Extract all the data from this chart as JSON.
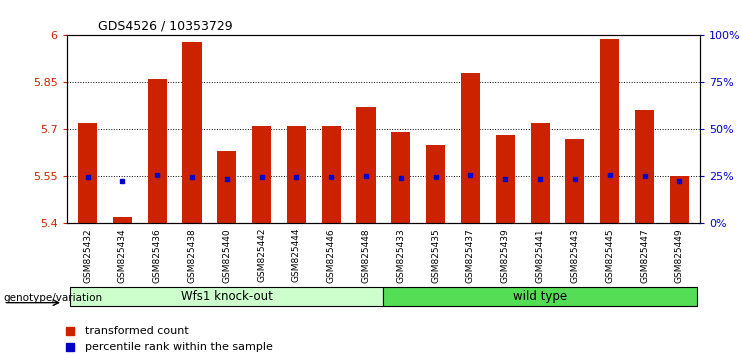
{
  "title": "GDS4526 / 10353729",
  "categories": [
    "GSM825432",
    "GSM825434",
    "GSM825436",
    "GSM825438",
    "GSM825440",
    "GSM825442",
    "GSM825444",
    "GSM825446",
    "GSM825448",
    "GSM825433",
    "GSM825435",
    "GSM825437",
    "GSM825439",
    "GSM825441",
    "GSM825443",
    "GSM825445",
    "GSM825447",
    "GSM825449"
  ],
  "bar_values": [
    5.72,
    5.42,
    5.86,
    5.98,
    5.63,
    5.71,
    5.71,
    5.71,
    5.77,
    5.69,
    5.65,
    5.88,
    5.68,
    5.72,
    5.67,
    5.99,
    5.76,
    5.55
  ],
  "blue_values": [
    5.548,
    5.533,
    5.552,
    5.548,
    5.542,
    5.548,
    5.548,
    5.548,
    5.55,
    5.543,
    5.548,
    5.552,
    5.542,
    5.542,
    5.542,
    5.552,
    5.55,
    5.535
  ],
  "bar_color": "#cc2200",
  "blue_color": "#0000cc",
  "ymin": 5.4,
  "ymax": 6.0,
  "yticks": [
    5.4,
    5.55,
    5.7,
    5.85,
    6.0
  ],
  "ytick_labels": [
    "5.4",
    "5.55",
    "5.7",
    "5.85",
    "6"
  ],
  "right_yticks_pct": [
    0,
    25,
    50,
    75,
    100
  ],
  "right_ytick_labels": [
    "0%",
    "25%",
    "50%",
    "75%",
    "100%"
  ],
  "group1_label": "Wfs1 knock-out",
  "group2_label": "wild type",
  "group1_count": 9,
  "group2_count": 9,
  "genotype_label": "genotype/variation",
  "legend_items": [
    "transformed count",
    "percentile rank within the sample"
  ],
  "bar_color_legend": "#cc2200",
  "blue_color_legend": "#0000cc",
  "bar_width": 0.55,
  "group1_bg": "#ccffcc",
  "group2_bg": "#55dd55"
}
